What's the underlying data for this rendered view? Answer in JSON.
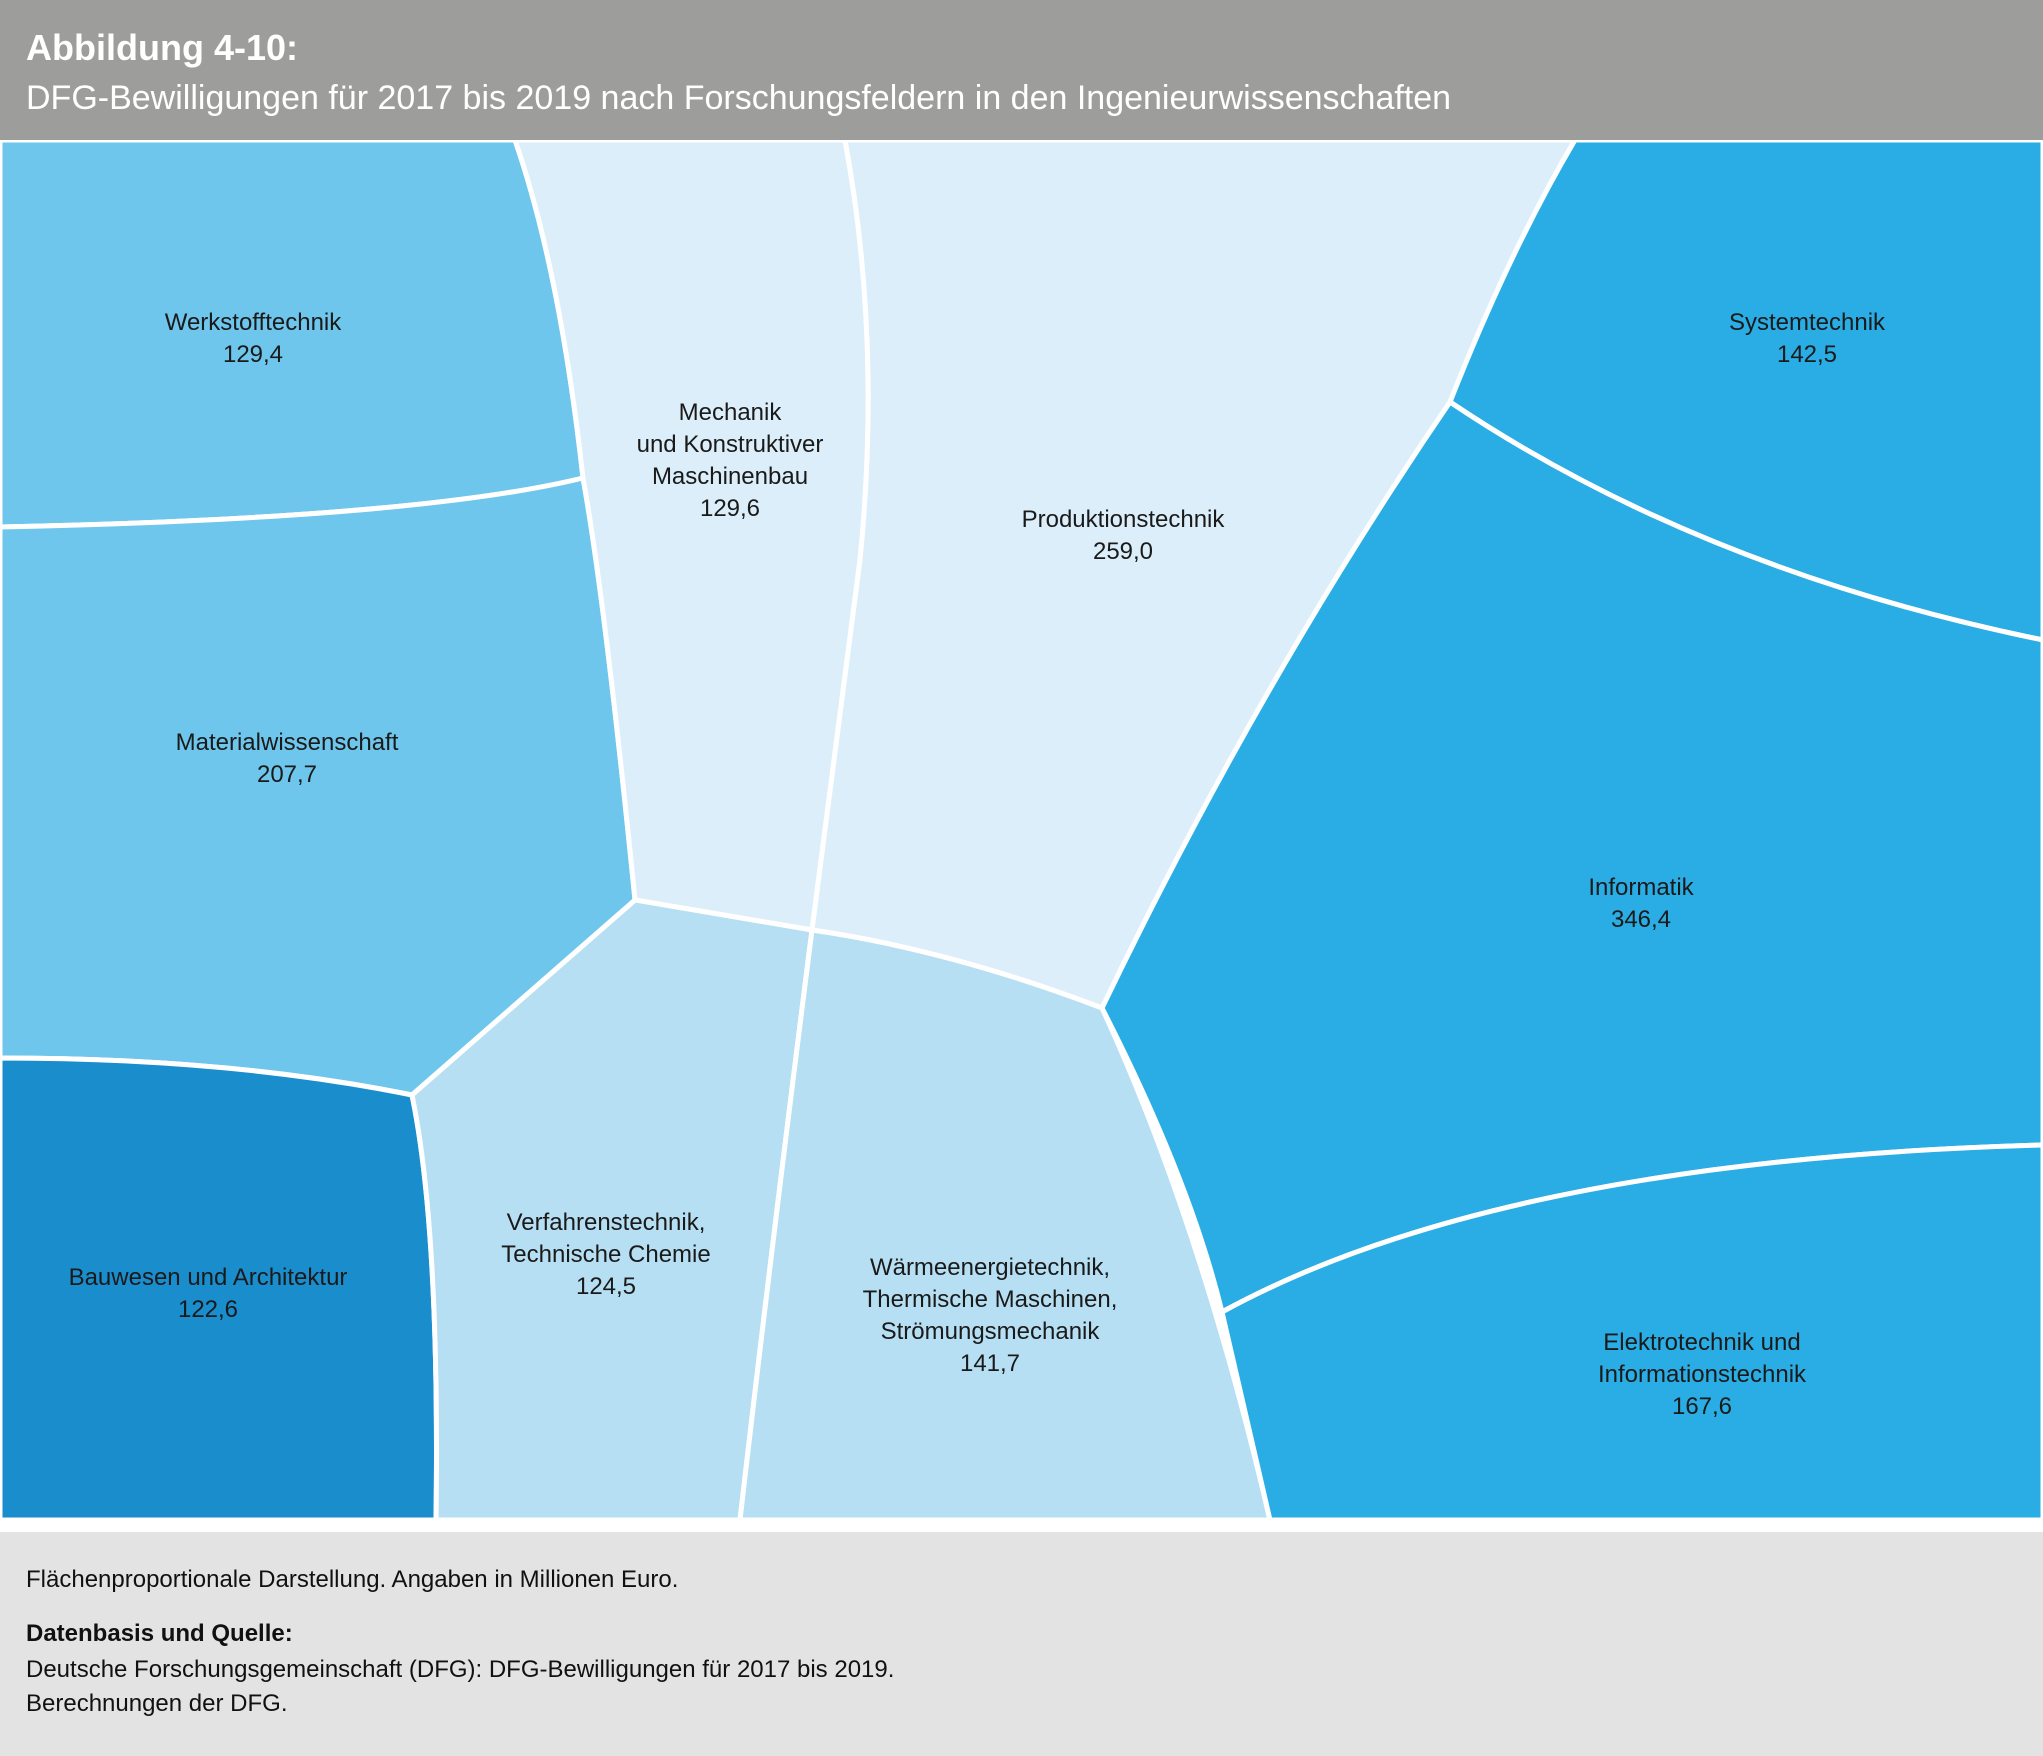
{
  "header": {
    "figure_label": "Abbildung 4-10:",
    "title": "DFG-Bewilligungen für 2017 bis 2019 nach Forschungsfeldern in den Ingenieurwissenschaften"
  },
  "colors": {
    "header_bg": "#9d9d9c",
    "footer_bg": "#e3e3e3",
    "divider": "#ffffff"
  },
  "chart_data": {
    "type": "treemap",
    "subtype": "voronoi",
    "unit": "Millionen Euro",
    "cells": [
      {
        "id": "werkstofftechnik",
        "lines": [
          "Werkstofftechnik"
        ],
        "value_label": "129,4",
        "value": 129.4,
        "color": "#6ec6ec"
      },
      {
        "id": "materialwissenschaft",
        "lines": [
          "Materialwissenschaft"
        ],
        "value_label": "207,7",
        "value": 207.7,
        "color": "#6ec6ec"
      },
      {
        "id": "bauwesen",
        "lines": [
          "Bauwesen und Architektur"
        ],
        "value_label": "122,6",
        "value": 122.6,
        "color": "#1a8dcd"
      },
      {
        "id": "mechanik",
        "lines": [
          "Mechanik",
          "und Konstruktiver",
          "Maschinenbau"
        ],
        "value_label": "129,6",
        "value": 129.6,
        "color": "#dbeef9"
      },
      {
        "id": "produktionstechnik",
        "lines": [
          "Produktionstechnik"
        ],
        "value_label": "259,0",
        "value": 259.0,
        "color": "#dbeef9"
      },
      {
        "id": "verfahrenstechnik",
        "lines": [
          "Verfahrenstechnik,",
          "Technische Chemie"
        ],
        "value_label": "124,5",
        "value": 124.5,
        "color": "#b6dff3"
      },
      {
        "id": "waermeenergietechnik",
        "lines": [
          "Wärmeenergietechnik,",
          "Thermische Maschinen,",
          "Strömungsmechanik"
        ],
        "value_label": "141,7",
        "value": 141.7,
        "color": "#b6dff3"
      },
      {
        "id": "systemtechnik",
        "lines": [
          "Systemtechnik"
        ],
        "value_label": "142,5",
        "value": 142.5,
        "color": "#29ade4"
      },
      {
        "id": "informatik",
        "lines": [
          "Informatik"
        ],
        "value_label": "346,4",
        "value": 346.4,
        "color": "#29ade4"
      },
      {
        "id": "elektrotechnik",
        "lines": [
          "Elektrotechnik und",
          "Informationstechnik"
        ],
        "value_label": "167,6",
        "value": 167.6,
        "color": "#29ade4"
      }
    ]
  },
  "footer": {
    "note": "Flächenproportionale Darstellung. Angaben in Millionen Euro.",
    "source_heading": "Datenbasis und Quelle:",
    "source_line1": "Deutsche Forschungsgemeinschaft (DFG): DFG-Bewilligungen für 2017 bis 2019.",
    "source_line2": "Berechnungen der DFG."
  }
}
